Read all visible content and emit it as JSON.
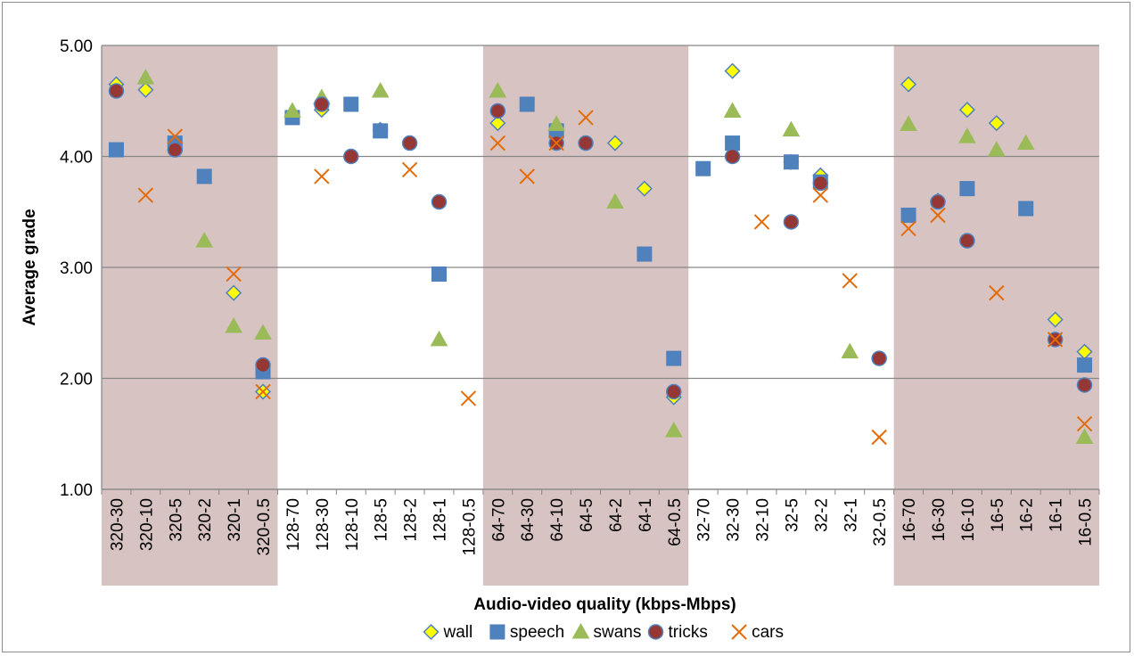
{
  "chart_data": {
    "type": "scatter",
    "xlabel": "Audio-video quality (kbps-Mbps)",
    "ylabel": "Average grade",
    "ylim": [
      1,
      5
    ],
    "yticks": [
      "1.00",
      "2.00",
      "3.00",
      "4.00",
      "5.00"
    ],
    "grid": "horizontal",
    "legend_position": "bottom",
    "categories": [
      "320-30",
      "320-10",
      "320-5",
      "320-2",
      "320-1",
      "320-0.5",
      "128-70",
      "128-30",
      "128-10",
      "128-5",
      "128-2",
      "128-1",
      "128-0.5",
      "64-70",
      "64-30",
      "64-10",
      "64-5",
      "64-2",
      "64-1",
      "64-0.5",
      "32-70",
      "32-30",
      "32-10",
      "32-5",
      "32-2",
      "32-1",
      "32-0.5",
      "16-70",
      "16-30",
      "16-10",
      "16-5",
      "16-2",
      "16-1",
      "16-0.5"
    ],
    "shaded_groups": [
      {
        "from": "320-30",
        "to": "320-0.5",
        "color": "#d8c3c3"
      },
      {
        "from": "64-70",
        "to": "64-0.5",
        "color": "#d8c3c3"
      },
      {
        "from": "16-70",
        "to": "16-0.5",
        "color": "#d8c3c3"
      }
    ],
    "series": [
      {
        "name": "wall",
        "marker": "diamond",
        "color": "#ffff00",
        "edge": "#4f81bd",
        "values": [
          4.65,
          4.6,
          4.12,
          null,
          2.77,
          1.88,
          4.37,
          4.42,
          null,
          4.24,
          null,
          null,
          null,
          4.3,
          null,
          4.18,
          null,
          4.12,
          3.71,
          1.83,
          null,
          4.77,
          null,
          3.95,
          3.83,
          null,
          null,
          4.65,
          3.6,
          4.42,
          4.3,
          null,
          2.53,
          2.24
        ]
      },
      {
        "name": "speech",
        "marker": "square",
        "color": "#4f81bd",
        "edge": "#4f81bd",
        "values": [
          4.06,
          null,
          4.12,
          3.82,
          null,
          2.06,
          4.35,
          null,
          4.47,
          4.23,
          null,
          2.94,
          null,
          null,
          4.47,
          4.23,
          null,
          null,
          3.12,
          2.18,
          3.89,
          4.12,
          null,
          3.95,
          3.77,
          null,
          null,
          3.47,
          null,
          3.71,
          null,
          3.53,
          null,
          2.12
        ]
      },
      {
        "name": "swans",
        "marker": "triangle",
        "color": "#9bbb59",
        "edge": "#9bbb59",
        "values": [
          null,
          4.71,
          null,
          3.24,
          2.47,
          2.41,
          4.41,
          4.53,
          null,
          4.59,
          null,
          2.35,
          null,
          4.59,
          null,
          4.29,
          null,
          3.59,
          null,
          1.53,
          null,
          4.41,
          null,
          4.24,
          null,
          2.24,
          null,
          4.29,
          null,
          4.18,
          4.06,
          4.12,
          null,
          1.47
        ]
      },
      {
        "name": "tricks",
        "marker": "circle",
        "color": "#953735",
        "edge": "#4f81bd",
        "values": [
          4.59,
          null,
          4.06,
          null,
          null,
          2.12,
          null,
          4.47,
          4.0,
          null,
          4.12,
          3.59,
          null,
          4.41,
          null,
          4.12,
          4.12,
          null,
          null,
          1.88,
          null,
          4.0,
          null,
          3.41,
          3.76,
          null,
          2.18,
          null,
          3.59,
          3.24,
          null,
          null,
          2.35,
          1.94
        ]
      },
      {
        "name": "cars",
        "marker": "x",
        "color": "#e36c09",
        "edge": "#e36c09",
        "values": [
          null,
          3.65,
          4.18,
          null,
          2.94,
          1.88,
          null,
          3.82,
          null,
          null,
          3.88,
          null,
          1.82,
          4.12,
          3.82,
          4.12,
          4.35,
          null,
          null,
          null,
          null,
          null,
          3.41,
          null,
          3.65,
          2.88,
          1.47,
          3.35,
          3.47,
          null,
          2.77,
          null,
          2.35,
          1.59
        ]
      }
    ]
  }
}
